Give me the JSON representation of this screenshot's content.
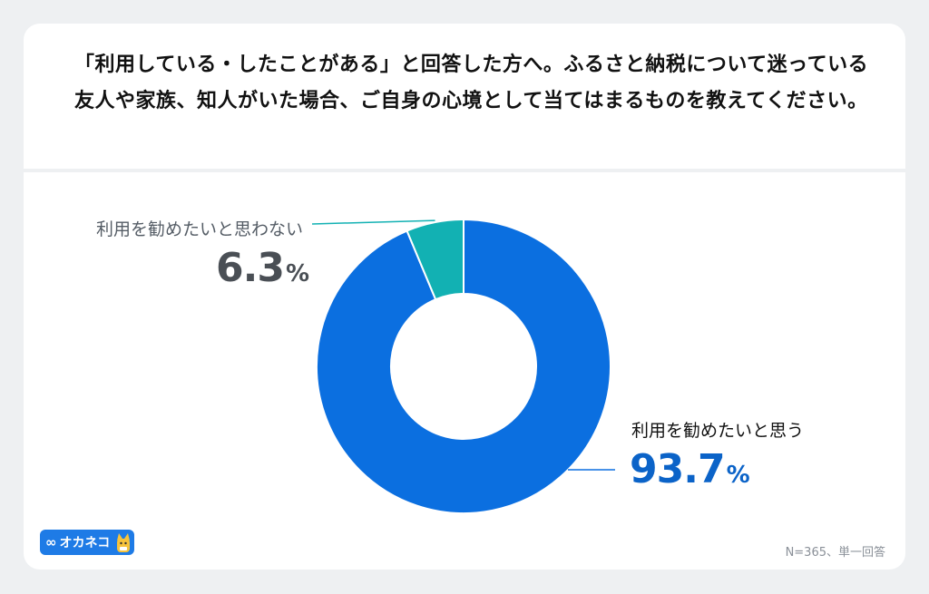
{
  "question": "「利用している・したことがある」と回答した方へ。ふるさと納税について迷っている友人や家族、知人がいた場合、ご自身の心境として当てはまるものを教えてください。",
  "footnote": "N=365、単一回答",
  "logo": {
    "text": "オカネコ",
    "icon": "infinity-icon"
  },
  "colors": {
    "large": "#0b6fe0",
    "small": "#12b1b3",
    "large_text": "#0b63c8",
    "small_text": "#4a4f55"
  },
  "chart_data": {
    "type": "pie",
    "variant": "donut",
    "title": "",
    "categories": [
      "利用を勧めたいと思う",
      "利用を勧めたいと思わない"
    ],
    "values": [
      93.7,
      6.3
    ],
    "labels": [
      {
        "name": "利用を勧めたいと思う",
        "value": "93.7",
        "unit": "%"
      },
      {
        "name": "利用を勧めたいと思わない",
        "value": "6.3",
        "unit": "%"
      }
    ]
  }
}
